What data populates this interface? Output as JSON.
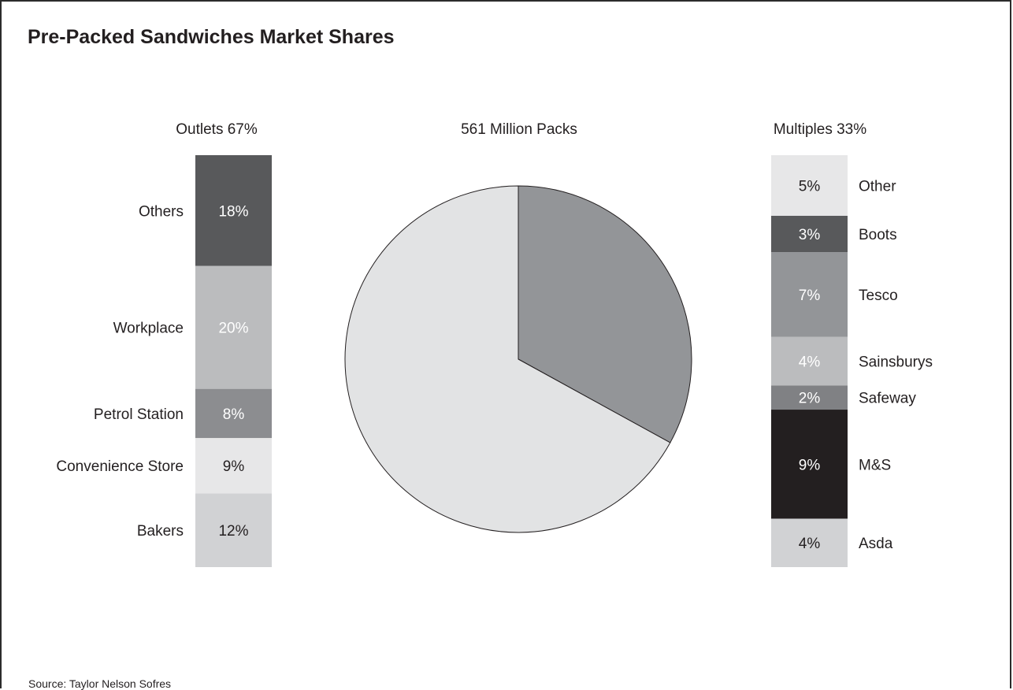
{
  "chart_data": [
    {
      "type": "bar",
      "title": "Outlets 67%",
      "stacked": true,
      "unit": "%",
      "segments": [
        {
          "label": "Bakers",
          "value": 12,
          "value_label": "12%",
          "color": "#d1d2d4",
          "label_color": "#231f20"
        },
        {
          "label": "Convenience Store",
          "value": 9,
          "value_label": "9%",
          "color": "#e7e7e8",
          "label_color": "#231f20"
        },
        {
          "label": "Petrol Station",
          "value": 8,
          "value_label": "8%",
          "color": "#8c8d90",
          "label_color": "#ffffff"
        },
        {
          "label": "Workplace",
          "value": 20,
          "value_label": "20%",
          "color": "#bbbcbe",
          "label_color": "#ffffff"
        },
        {
          "label": "Others",
          "value": 18,
          "value_label": "18%",
          "color": "#58595b",
          "label_color": "#ffffff"
        }
      ]
    },
    {
      "type": "pie",
      "title": "561 Million Packs",
      "slices": [
        {
          "name": "Multiples",
          "value": 33,
          "color": "#939598"
        },
        {
          "name": "Outlets",
          "value": 67,
          "color": "#e2e3e4"
        }
      ]
    },
    {
      "type": "bar",
      "title": "Multiples 33%",
      "stacked": true,
      "unit": "%",
      "segments": [
        {
          "label": "Asda",
          "value": 4,
          "value_label": "4%",
          "color": "#d1d2d4",
          "label_color": "#231f20"
        },
        {
          "label": "M&S",
          "value": 9,
          "value_label": "9%",
          "color": "#231f20",
          "label_color": "#ffffff"
        },
        {
          "label": "Safeway",
          "value": 2,
          "value_label": "2%",
          "color": "#808184",
          "label_color": "#ffffff"
        },
        {
          "label": "Sainsburys",
          "value": 4,
          "value_label": "4%",
          "color": "#bbbcbe",
          "label_color": "#ffffff"
        },
        {
          "label": "Tesco",
          "value": 7,
          "value_label": "7%",
          "color": "#939598",
          "label_color": "#ffffff"
        },
        {
          "label": "Boots",
          "value": 3,
          "value_label": "3%",
          "color": "#58595b",
          "label_color": "#ffffff"
        },
        {
          "label": "Other",
          "value": 5,
          "value_label": "5%",
          "color": "#e7e7e8",
          "label_color": "#231f20"
        }
      ]
    }
  ],
  "header": {
    "title": "Pre-Packed Sandwiches Market Shares"
  },
  "footer": {
    "source": "Source: Taylor Nelson Sofres"
  }
}
